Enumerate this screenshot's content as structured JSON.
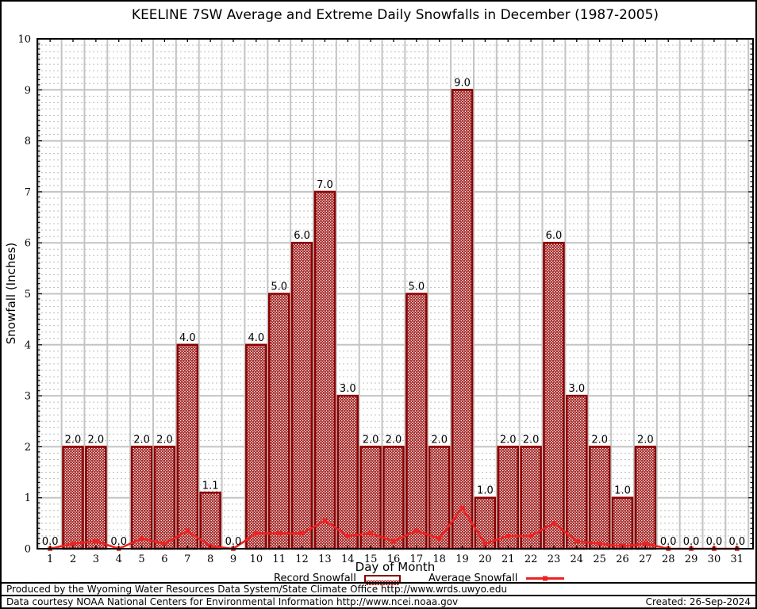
{
  "title": "KEELINE 7SW Average and Extreme Daily Snowfalls in December (1987-2005)",
  "legend": {
    "record_label": "Record Snowfall",
    "average_label": "Average Snowfall"
  },
  "footer": {
    "produced_by": "Produced by the Wyoming Water Resources Data System/State Climate Office http://www.wrds.uwyo.edu",
    "data_courtesy": "Data courtesy NOAA National Centers for Environmental Information http://www.ncei.noaa.gov",
    "created": "Created: 26-Sep-2024"
  },
  "colors": {
    "bar_border": "#8b0000",
    "bar_hatch": "#9e1a1a",
    "line": "#ee2222",
    "grid_major": "#c4c4c4",
    "grid_minor": "#bdbdbd",
    "axis": "#000000",
    "label_text": "#000000"
  },
  "chart_data": {
    "type": "bar",
    "title": "KEELINE 7SW Average and Extreme Daily Snowfalls in December (1987-2005)",
    "xlabel": "Day of Month",
    "ylabel": "Snowfall (Inches)",
    "x": [
      1,
      2,
      3,
      4,
      5,
      6,
      7,
      8,
      9,
      10,
      11,
      12,
      13,
      14,
      15,
      16,
      17,
      18,
      19,
      20,
      21,
      22,
      23,
      24,
      25,
      26,
      27,
      28,
      29,
      30,
      31
    ],
    "ylim": [
      0,
      10
    ],
    "y_ticks": [
      0,
      1,
      2,
      3,
      4,
      5,
      6,
      7,
      8,
      9,
      10
    ],
    "grid": true,
    "legend_position": "bottom",
    "bar_value_labels_shown": true,
    "series": [
      {
        "name": "Record Snowfall",
        "type": "bar",
        "values": [
          0.0,
          2.0,
          2.0,
          0.0,
          2.0,
          2.0,
          4.0,
          1.1,
          0.0,
          4.0,
          5.0,
          6.0,
          7.0,
          3.0,
          2.0,
          2.0,
          5.0,
          2.0,
          9.0,
          1.0,
          2.0,
          2.0,
          6.0,
          3.0,
          2.0,
          1.0,
          2.0,
          0.0,
          0.0,
          0.0,
          0.0
        ]
      },
      {
        "name": "Average Snowfall",
        "type": "line",
        "values": [
          0.0,
          0.1,
          0.15,
          0.0,
          0.2,
          0.1,
          0.35,
          0.05,
          0.0,
          0.3,
          0.3,
          0.3,
          0.55,
          0.25,
          0.3,
          0.15,
          0.35,
          0.2,
          0.8,
          0.1,
          0.25,
          0.25,
          0.5,
          0.15,
          0.1,
          0.05,
          0.1,
          0.0,
          0.0,
          0.0,
          0.0
        ]
      }
    ]
  }
}
